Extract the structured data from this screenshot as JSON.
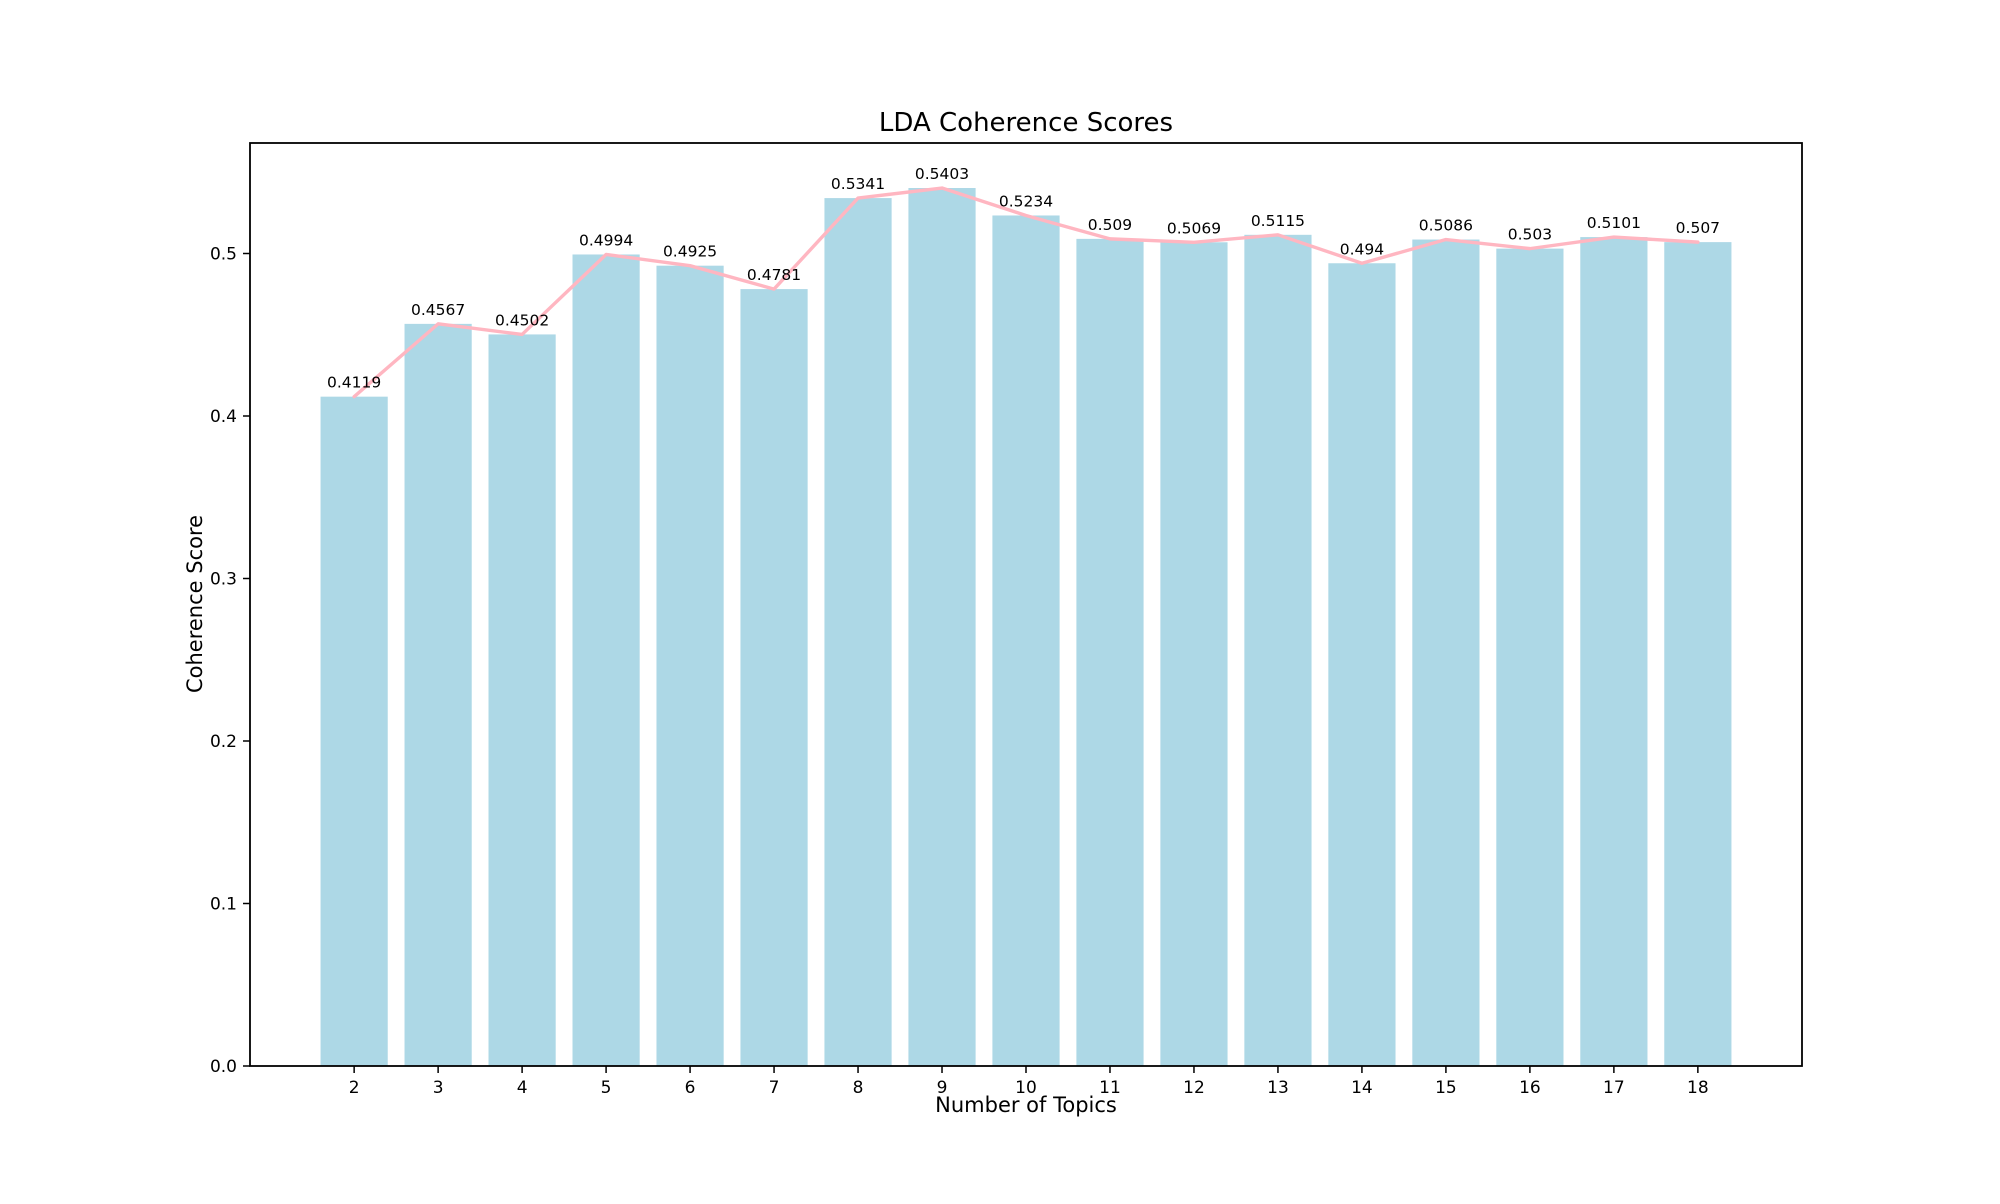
{
  "figure": {
    "background": "#ffffff"
  },
  "chart_data": {
    "type": "bar",
    "title": "LDA Coherence Scores",
    "xlabel": "Number of Topics",
    "ylabel": "Coherence Score",
    "categories": [
      2,
      3,
      4,
      5,
      6,
      7,
      8,
      9,
      10,
      11,
      12,
      13,
      14,
      15,
      16,
      17,
      18
    ],
    "values": [
      0.4119,
      0.4567,
      0.4502,
      0.4994,
      0.4925,
      0.4781,
      0.5341,
      0.5403,
      0.5234,
      0.509,
      0.5069,
      0.5115,
      0.494,
      0.5086,
      0.503,
      0.5101,
      0.507
    ],
    "value_labels": [
      "0.4119",
      "0.4567",
      "0.4502",
      "0.4994",
      "0.4925",
      "0.4781",
      "0.5341",
      "0.5403",
      "0.5234",
      "0.509",
      "0.5069",
      "0.5115",
      "0.494",
      "0.5086",
      "0.503",
      "0.5101",
      "0.507"
    ],
    "series": [
      {
        "name": "coherence-score-bars",
        "type": "bar",
        "color": "#ADD8E6"
      },
      {
        "name": "coherence-score-trend-line",
        "type": "line",
        "color": "#FFB6C1"
      }
    ],
    "ylim": [
      0,
      0.568
    ],
    "yticks": [
      0,
      0.1,
      0.2,
      0.3,
      0.4,
      0.5
    ],
    "ytick_labels": [
      "0.0",
      "0.1",
      "0.2",
      "0.3",
      "0.4",
      "0.5"
    ],
    "grid": false,
    "legend": "none",
    "colors": {
      "bar": "#ADD8E6",
      "line": "#FFB6C1",
      "spine": "#000000",
      "text": "#000000",
      "background": "#ffffff"
    }
  }
}
